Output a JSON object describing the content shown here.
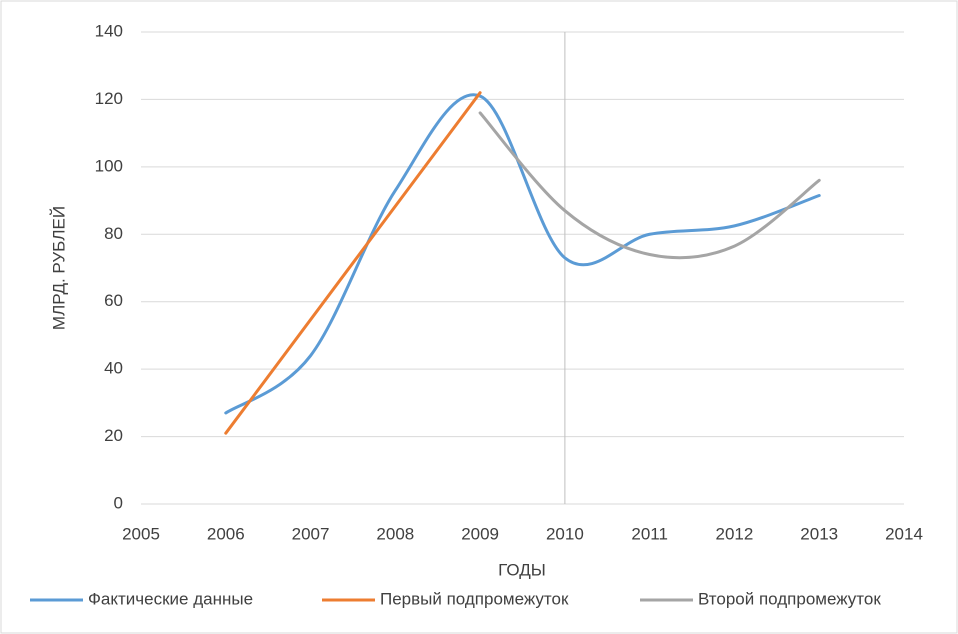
{
  "chart_data": {
    "type": "line",
    "smooth": true,
    "x_title": "ГОДЫ",
    "y_title": "МЛРД. РУБЛЕЙ",
    "xlim": [
      2005,
      2014
    ],
    "xticks": [
      2005,
      2006,
      2007,
      2008,
      2009,
      2010,
      2011,
      2012,
      2013,
      2014
    ],
    "ylim": [
      0,
      140
    ],
    "yticks": [
      0,
      20,
      40,
      60,
      80,
      100,
      120,
      140
    ],
    "grid": true,
    "y_axis_crosses": 2010,
    "legend": "bottom",
    "series": [
      {
        "name": "Фактические данные",
        "color": "#5b9bd5",
        "x": [
          2006,
          2007,
          2008,
          2009,
          2010,
          2011,
          2012,
          2013
        ],
        "values": [
          27,
          44,
          93,
          121,
          73,
          80,
          82.5,
          91.5
        ]
      },
      {
        "name": "Первый подпромежуток",
        "color": "#ed7d31",
        "x": [
          2006,
          2009
        ],
        "values": [
          21,
          122
        ]
      },
      {
        "name": "Второй подпромежуток",
        "color": "#a5a5a5",
        "x": [
          2009,
          2010,
          2011,
          2012,
          2013
        ],
        "values": [
          116,
          87,
          74,
          76.5,
          96
        ]
      }
    ]
  }
}
